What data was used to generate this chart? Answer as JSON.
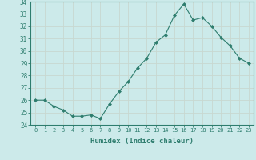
{
  "x": [
    0,
    1,
    2,
    3,
    4,
    5,
    6,
    7,
    8,
    9,
    10,
    11,
    12,
    13,
    14,
    15,
    16,
    17,
    18,
    19,
    20,
    21,
    22,
    23
  ],
  "y": [
    26.0,
    26.0,
    25.5,
    25.2,
    24.7,
    24.7,
    24.8,
    24.5,
    25.7,
    26.7,
    27.5,
    28.6,
    29.4,
    30.7,
    31.3,
    32.9,
    33.8,
    32.5,
    32.7,
    32.0,
    31.1,
    30.4,
    29.4,
    29.0
  ],
  "line_color": "#2e7d6e",
  "marker": "D",
  "marker_size": 2,
  "bg_color": "#cceaea",
  "grid_color": "#c8d8d0",
  "xlabel": "Humidex (Indice chaleur)",
  "ylabel": "",
  "ylim": [
    24,
    34
  ],
  "xlim": [
    -0.5,
    23.5
  ],
  "yticks": [
    24,
    25,
    26,
    27,
    28,
    29,
    30,
    31,
    32,
    33,
    34
  ],
  "xticks": [
    0,
    1,
    2,
    3,
    4,
    5,
    6,
    7,
    8,
    9,
    10,
    11,
    12,
    13,
    14,
    15,
    16,
    17,
    18,
    19,
    20,
    21,
    22,
    23
  ],
  "xtick_labels": [
    "0",
    "1",
    "2",
    "3",
    "4",
    "5",
    "6",
    "7",
    "8",
    "9",
    "10",
    "11",
    "12",
    "13",
    "14",
    "15",
    "16",
    "17",
    "18",
    "19",
    "20",
    "21",
    "22",
    "23"
  ],
  "label_color": "#2e7d6e",
  "tick_color": "#2e7d6e",
  "spine_color": "#2e7d6e"
}
